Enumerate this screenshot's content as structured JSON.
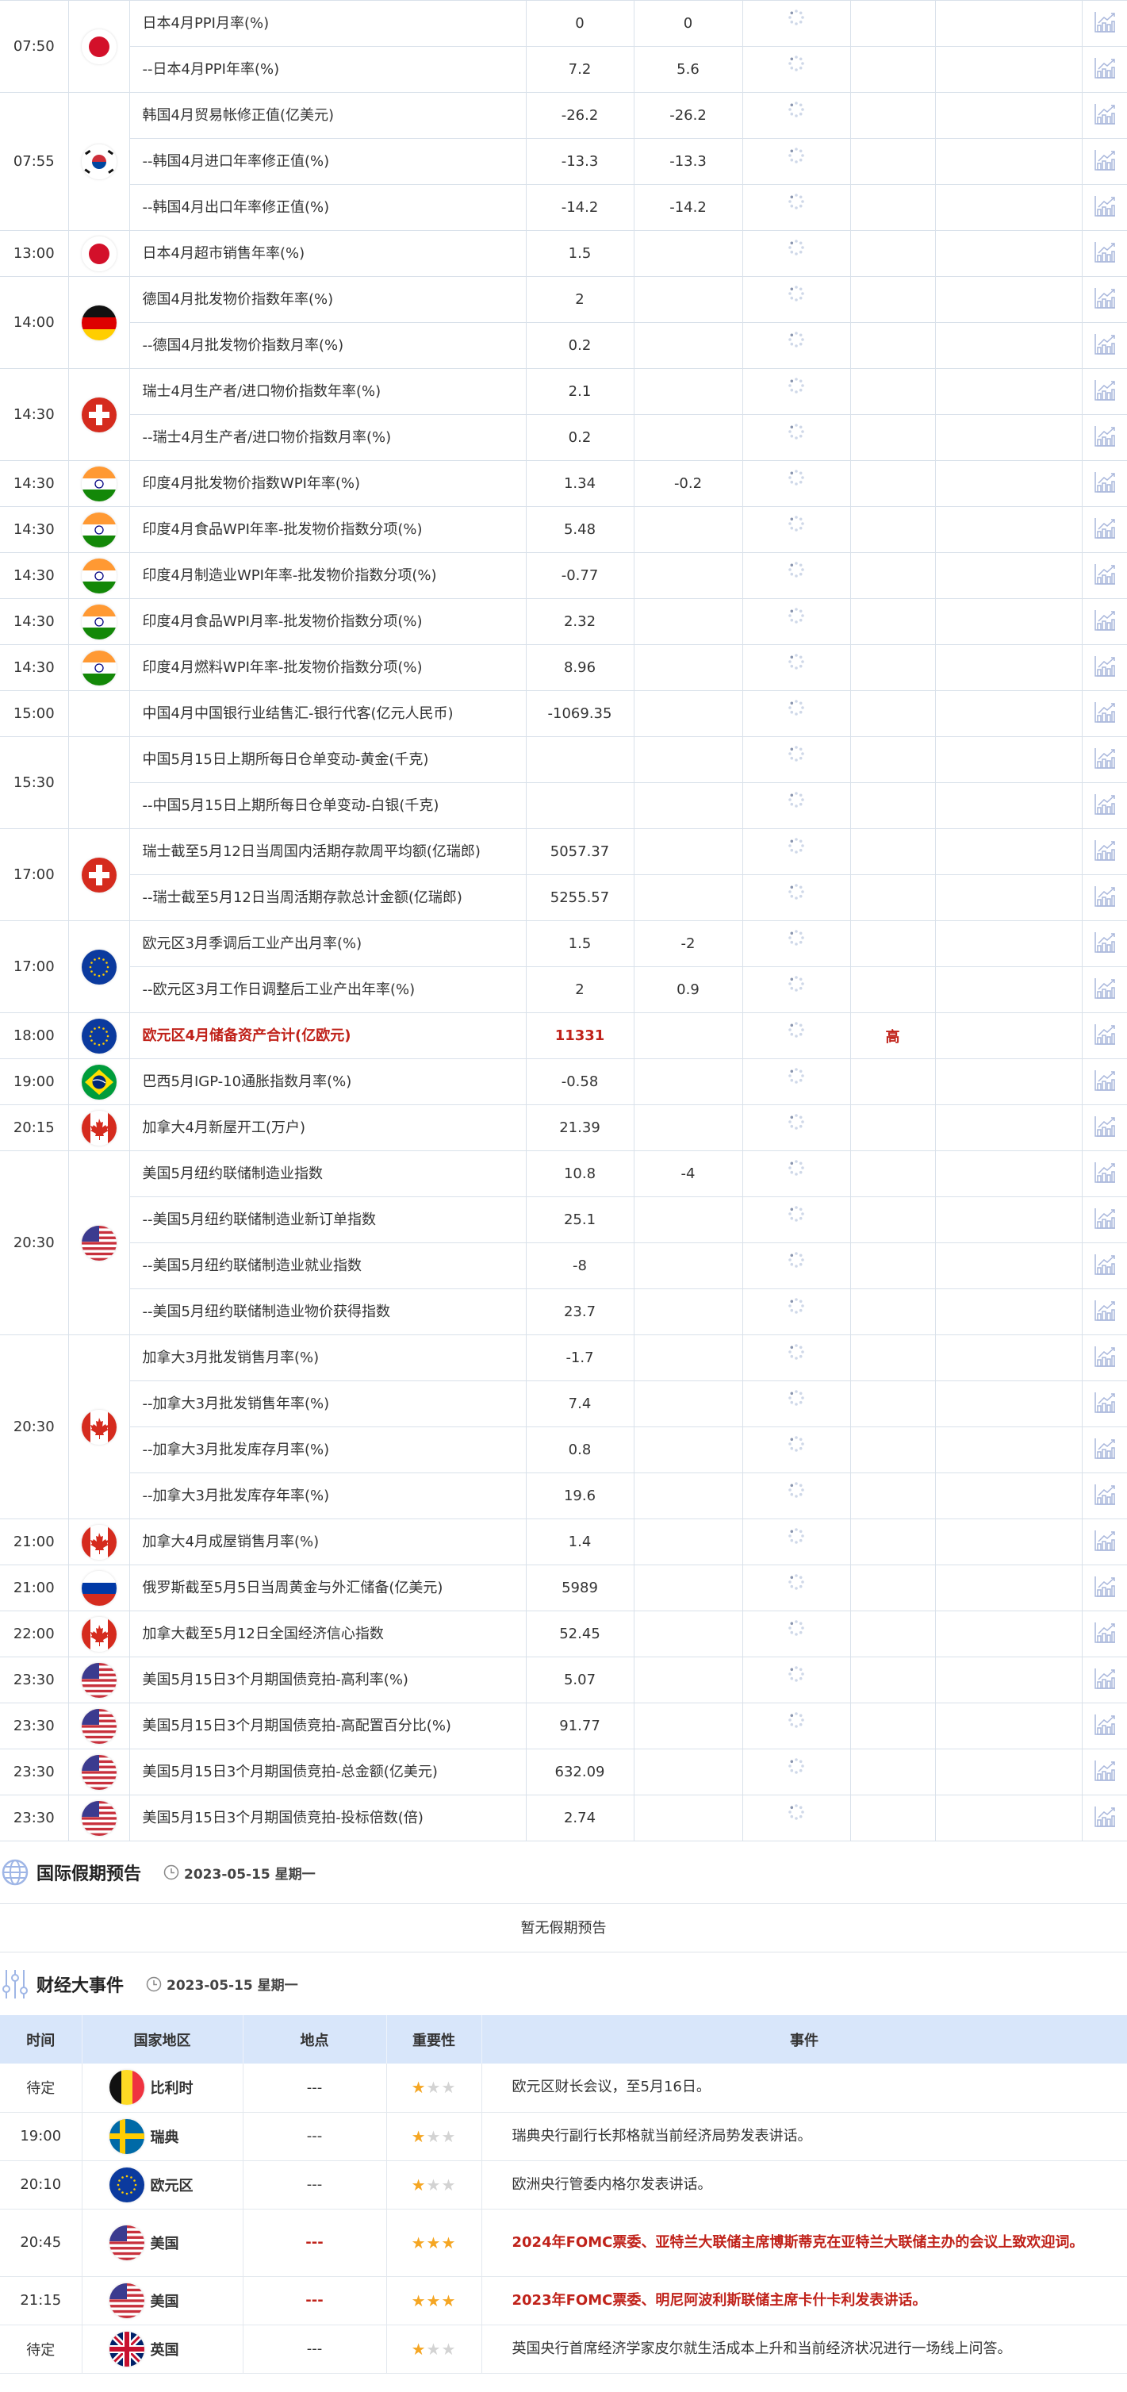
{
  "colors": {
    "accent_red": "#c0221a",
    "grid": "#d9e1ea",
    "header_bg": "#d8e6fa",
    "star_on": "#f5a623",
    "star_off": "#d3d3d3"
  },
  "calendar": [
    {
      "time": "07:50",
      "flag": "jp",
      "items": [
        {
          "name": "日本4月PPI月率(%)",
          "v1": "0",
          "v2": "0"
        },
        {
          "name": "--日本4月PPI年率(%)",
          "v1": "7.2",
          "v2": "5.6"
        }
      ]
    },
    {
      "time": "07:55",
      "flag": "kr",
      "items": [
        {
          "name": "韩国4月贸易帐修正值(亿美元)",
          "v1": "-26.2",
          "v2": "-26.2"
        },
        {
          "name": "--韩国4月进口年率修正值(%)",
          "v1": "-13.3",
          "v2": "-13.3"
        },
        {
          "name": "--韩国4月出口年率修正值(%)",
          "v1": "-14.2",
          "v2": "-14.2"
        }
      ]
    },
    {
      "time": "13:00",
      "flag": "jp",
      "items": [
        {
          "name": "日本4月超市销售年率(%)",
          "v1": "1.5",
          "v2": ""
        }
      ]
    },
    {
      "time": "14:00",
      "flag": "de",
      "items": [
        {
          "name": "德国4月批发物价指数年率(%)",
          "v1": "2",
          "v2": ""
        },
        {
          "name": "--德国4月批发物价指数月率(%)",
          "v1": "0.2",
          "v2": ""
        }
      ]
    },
    {
      "time": "14:30",
      "flag": "ch",
      "items": [
        {
          "name": "瑞士4月生产者/进口物价指数年率(%)",
          "v1": "2.1",
          "v2": ""
        },
        {
          "name": "--瑞士4月生产者/进口物价指数月率(%)",
          "v1": "0.2",
          "v2": ""
        }
      ]
    },
    {
      "time": "14:30",
      "flag": "in",
      "items": [
        {
          "name": "印度4月批发物价指数WPI年率(%)",
          "v1": "1.34",
          "v2": "-0.2"
        }
      ]
    },
    {
      "time": "14:30",
      "flag": "in",
      "items": [
        {
          "name": "印度4月食品WPI年率-批发物价指数分项(%)",
          "v1": "5.48",
          "v2": ""
        }
      ]
    },
    {
      "time": "14:30",
      "flag": "in",
      "items": [
        {
          "name": "印度4月制造业WPI年率-批发物价指数分项(%)",
          "v1": "-0.77",
          "v2": ""
        }
      ]
    },
    {
      "time": "14:30",
      "flag": "in",
      "items": [
        {
          "name": "印度4月食品WPI月率-批发物价指数分项(%)",
          "v1": "2.32",
          "v2": ""
        }
      ]
    },
    {
      "time": "14:30",
      "flag": "in",
      "items": [
        {
          "name": "印度4月燃料WPI年率-批发物价指数分项(%)",
          "v1": "8.96",
          "v2": ""
        }
      ]
    },
    {
      "time": "15:00",
      "flag": "",
      "items": [
        {
          "name": "中国4月中国银行业结售汇-银行代客(亿元人民币)",
          "v1": "-1069.35",
          "v2": ""
        }
      ]
    },
    {
      "time": "15:30",
      "flag": "",
      "items": [
        {
          "name": "中国5月15日上期所每日仓单变动-黄金(千克)",
          "v1": "",
          "v2": ""
        },
        {
          "name": "--中国5月15日上期所每日仓单变动-白银(千克)",
          "v1": "",
          "v2": ""
        }
      ]
    },
    {
      "time": "17:00",
      "flag": "ch",
      "items": [
        {
          "name": "瑞士截至5月12日当周国内活期存款周平均额(亿瑞郎)",
          "v1": "5057.37",
          "v2": ""
        },
        {
          "name": "--瑞士截至5月12日当周活期存款总计金额(亿瑞郎)",
          "v1": "5255.57",
          "v2": ""
        }
      ]
    },
    {
      "time": "17:00",
      "flag": "eu",
      "items": [
        {
          "name": "欧元区3月季调后工业产出月率(%)",
          "v1": "1.5",
          "v2": "-2"
        },
        {
          "name": "--欧元区3月工作日调整后工业产出年率(%)",
          "v1": "2",
          "v2": "0.9"
        }
      ]
    },
    {
      "time": "18:00",
      "flag": "eu",
      "items": [
        {
          "name": "欧元区4月储备资产合计(亿欧元)",
          "v1": "11331",
          "v2": "",
          "importance": "高",
          "highlight": true
        }
      ]
    },
    {
      "time": "19:00",
      "flag": "br",
      "items": [
        {
          "name": "巴西5月IGP-10通胀指数月率(%)",
          "v1": "-0.58",
          "v2": ""
        }
      ]
    },
    {
      "time": "20:15",
      "flag": "ca",
      "items": [
        {
          "name": "加拿大4月新屋开工(万户)",
          "v1": "21.39",
          "v2": ""
        }
      ]
    },
    {
      "time": "20:30",
      "flag": "us",
      "items": [
        {
          "name": "美国5月纽约联储制造业指数",
          "v1": "10.8",
          "v2": "-4"
        },
        {
          "name": "--美国5月纽约联储制造业新订单指数",
          "v1": "25.1",
          "v2": ""
        },
        {
          "name": "--美国5月纽约联储制造业就业指数",
          "v1": "-8",
          "v2": ""
        },
        {
          "name": "--美国5月纽约联储制造业物价获得指数",
          "v1": "23.7",
          "v2": ""
        }
      ]
    },
    {
      "time": "20:30",
      "flag": "ca",
      "items": [
        {
          "name": "加拿大3月批发销售月率(%)",
          "v1": "-1.7",
          "v2": ""
        },
        {
          "name": "--加拿大3月批发销售年率(%)",
          "v1": "7.4",
          "v2": ""
        },
        {
          "name": "--加拿大3月批发库存月率(%)",
          "v1": "0.8",
          "v2": ""
        },
        {
          "name": "--加拿大3月批发库存年率(%)",
          "v1": "19.6",
          "v2": ""
        }
      ]
    },
    {
      "time": "21:00",
      "flag": "ca",
      "items": [
        {
          "name": "加拿大4月成屋销售月率(%)",
          "v1": "1.4",
          "v2": ""
        }
      ]
    },
    {
      "time": "21:00",
      "flag": "ru",
      "items": [
        {
          "name": "俄罗斯截至5月5日当周黄金与外汇储备(亿美元)",
          "v1": "5989",
          "v2": ""
        }
      ]
    },
    {
      "time": "22:00",
      "flag": "ca",
      "items": [
        {
          "name": "加拿大截至5月12日全国经济信心指数",
          "v1": "52.45",
          "v2": ""
        }
      ]
    },
    {
      "time": "23:30",
      "flag": "us",
      "items": [
        {
          "name": "美国5月15日3个月期国债竞拍-高利率(%)",
          "v1": "5.07",
          "v2": ""
        }
      ]
    },
    {
      "time": "23:30",
      "flag": "us",
      "items": [
        {
          "name": "美国5月15日3个月期国债竞拍-高配置百分比(%)",
          "v1": "91.77",
          "v2": ""
        }
      ]
    },
    {
      "time": "23:30",
      "flag": "us",
      "items": [
        {
          "name": "美国5月15日3个月期国债竞拍-总金额(亿美元)",
          "v1": "632.09",
          "v2": ""
        }
      ]
    },
    {
      "time": "23:30",
      "flag": "us",
      "items": [
        {
          "name": "美国5月15日3个月期国债竞拍-投标倍数(倍)",
          "v1": "2.74",
          "v2": ""
        }
      ]
    }
  ],
  "holiday": {
    "title": "国际假期预告",
    "date": "2023-05-15 星期一",
    "icon": "globe-icon",
    "empty_text": "暂无假期预告"
  },
  "events": {
    "title": "财经大事件",
    "date": "2023-05-15 星期一",
    "icon": "sliders-icon",
    "headers": [
      "时间",
      "国家地区",
      "地点",
      "重要性",
      "事件"
    ],
    "rows": [
      {
        "time": "待定",
        "flag": "be",
        "region": "比利时",
        "place": "---",
        "stars": 1,
        "event": "欧元区财长会议，至5月16日。",
        "highlight": false
      },
      {
        "time": "19:00",
        "flag": "se",
        "region": "瑞典",
        "place": "---",
        "stars": 1,
        "event": "瑞典央行副行长邦格就当前经济局势发表讲话。",
        "highlight": false
      },
      {
        "time": "20:10",
        "flag": "eu",
        "region": "欧元区",
        "place": "---",
        "stars": 1,
        "event": "欧洲央行管委内格尔发表讲话。",
        "highlight": false
      },
      {
        "time": "20:45",
        "flag": "us",
        "region": "美国",
        "place": "---",
        "stars": 3,
        "event": "2024年FOMC票委、亚特兰大联储主席博斯蒂克在亚特兰大联储主办的会议上致欢迎词。",
        "highlight": true
      },
      {
        "time": "21:15",
        "flag": "us",
        "region": "美国",
        "place": "---",
        "stars": 3,
        "event": "2023年FOMC票委、明尼阿波利斯联储主席卡什卡利发表讲话。",
        "highlight": true
      },
      {
        "time": "待定",
        "flag": "gb",
        "region": "英国",
        "place": "---",
        "stars": 1,
        "event": "英国央行首席经济学家皮尔就生活成本上升和当前经济状况进行一场线上问答。",
        "highlight": false
      }
    ]
  }
}
